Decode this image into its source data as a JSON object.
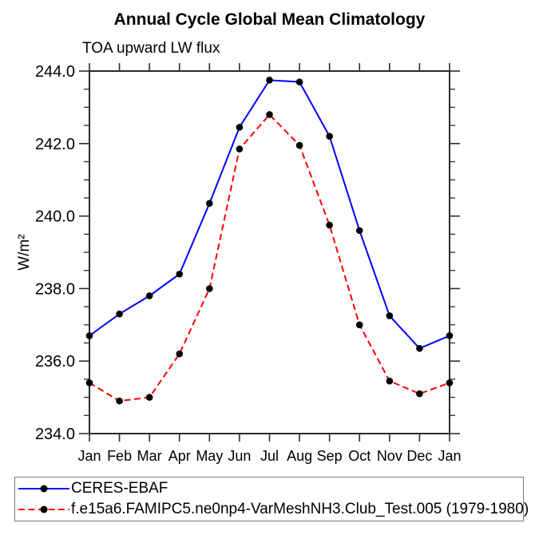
{
  "chart_data": {
    "type": "line",
    "title": "Annual Cycle Global Mean Climatology",
    "subtitle": "TOA upward LW flux",
    "ylabel": "W/m²",
    "ylim": [
      234.0,
      244.0
    ],
    "ytick_step": 2.0,
    "yminor_step": 0.5,
    "ytick_labels": [
      "244.0",
      "242.0",
      "240.0",
      "238.0",
      "236.0",
      "234.0"
    ],
    "categories": [
      "Jan",
      "Feb",
      "Mar",
      "Apr",
      "May",
      "Jun",
      "Jul",
      "Aug",
      "Sep",
      "Oct",
      "Nov",
      "Dec",
      "Jan"
    ],
    "grid": false,
    "legend_position": "bottom-left",
    "marker": "filled-circle",
    "marker_color": "#000000",
    "series": [
      {
        "name": "CERES-EBAF",
        "color": "#0000ff",
        "style": "solid",
        "values": [
          236.7,
          237.3,
          237.8,
          238.4,
          240.35,
          242.45,
          243.75,
          243.7,
          242.2,
          239.6,
          237.25,
          236.35,
          236.7
        ]
      },
      {
        "name": "f.e15a6.FAMIPC5.ne0np4-VarMeshNH3.Club_Test.005 (1979-1980)",
        "color": "#ff0000",
        "style": "dashed",
        "values": [
          235.4,
          234.9,
          235.0,
          236.2,
          238.0,
          241.85,
          242.8,
          241.95,
          239.75,
          237.0,
          235.45,
          235.1,
          235.4
        ]
      }
    ]
  }
}
